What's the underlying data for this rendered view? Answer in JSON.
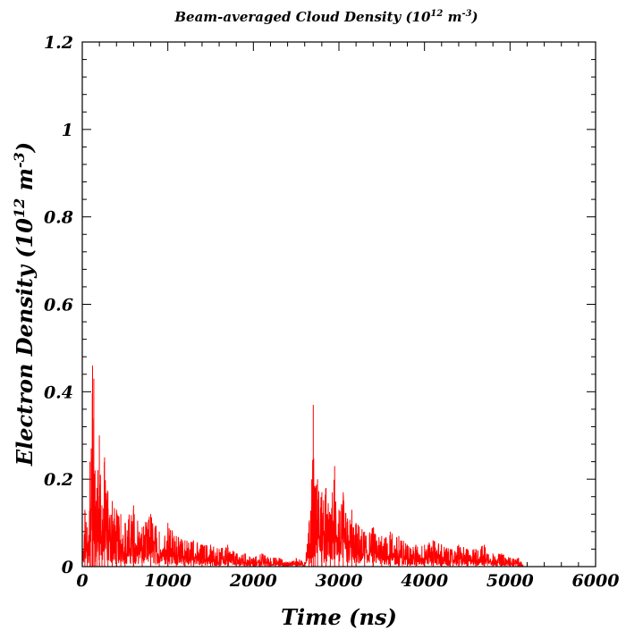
{
  "chart_data": {
    "type": "line",
    "title_main": "Beam-averaged Cloud Density (10",
    "title_exp1": "12",
    "title_mid": " m",
    "title_exp2": "-3",
    "title_end": ")",
    "xlabel": "Time (ns)",
    "ylabel_main": "Electron Density (10",
    "ylabel_exp1": "12",
    "ylabel_mid": " m",
    "ylabel_exp2": "-3",
    "ylabel_end": ")",
    "xlim": [
      0,
      6000
    ],
    "ylim": [
      0,
      1.2
    ],
    "x_ticks": [
      "0",
      "1000",
      "2000",
      "3000",
      "4000",
      "5000",
      "6000"
    ],
    "y_ticks": [
      "0",
      "0.2",
      "0.4",
      "0.6",
      "0.8",
      "1",
      "1.2"
    ],
    "series_color": "#ff0000",
    "series": [
      {
        "x": [
          0,
          30,
          60,
          90,
          105,
          120,
          135,
          150,
          170,
          200,
          230,
          260,
          300,
          350,
          400,
          450,
          500,
          600,
          700,
          800,
          900,
          1000,
          1100,
          1200,
          1300,
          1400,
          1500,
          1600,
          1700,
          1800,
          1900,
          2000,
          2100,
          2200,
          2300,
          2400,
          2500,
          2600,
          2650,
          2680,
          2700,
          2720,
          2750,
          2800,
          2850,
          2900,
          2950,
          3000,
          3050,
          3100,
          3150,
          3200,
          3300,
          3400,
          3500,
          3600,
          3700,
          3800,
          3900,
          4000,
          4100,
          4200,
          4300,
          4400,
          4500,
          4600,
          4700,
          4800,
          4900,
          5000,
          5100,
          5150
        ],
        "y": [
          0.01,
          0.13,
          0.09,
          0.24,
          0.27,
          0.46,
          0.43,
          0.22,
          0.18,
          0.3,
          0.14,
          0.25,
          0.17,
          0.15,
          0.13,
          0.12,
          0.1,
          0.14,
          0.09,
          0.12,
          0.08,
          0.1,
          0.07,
          0.06,
          0.06,
          0.05,
          0.05,
          0.04,
          0.05,
          0.03,
          0.03,
          0.02,
          0.03,
          0.02,
          0.02,
          0.01,
          0.02,
          0.01,
          0.1,
          0.2,
          0.37,
          0.18,
          0.2,
          0.17,
          0.18,
          0.12,
          0.23,
          0.13,
          0.17,
          0.11,
          0.13,
          0.1,
          0.08,
          0.09,
          0.07,
          0.08,
          0.07,
          0.05,
          0.05,
          0.05,
          0.06,
          0.05,
          0.04,
          0.05,
          0.04,
          0.04,
          0.05,
          0.03,
          0.03,
          0.02,
          0.02,
          0.005
        ]
      }
    ]
  }
}
